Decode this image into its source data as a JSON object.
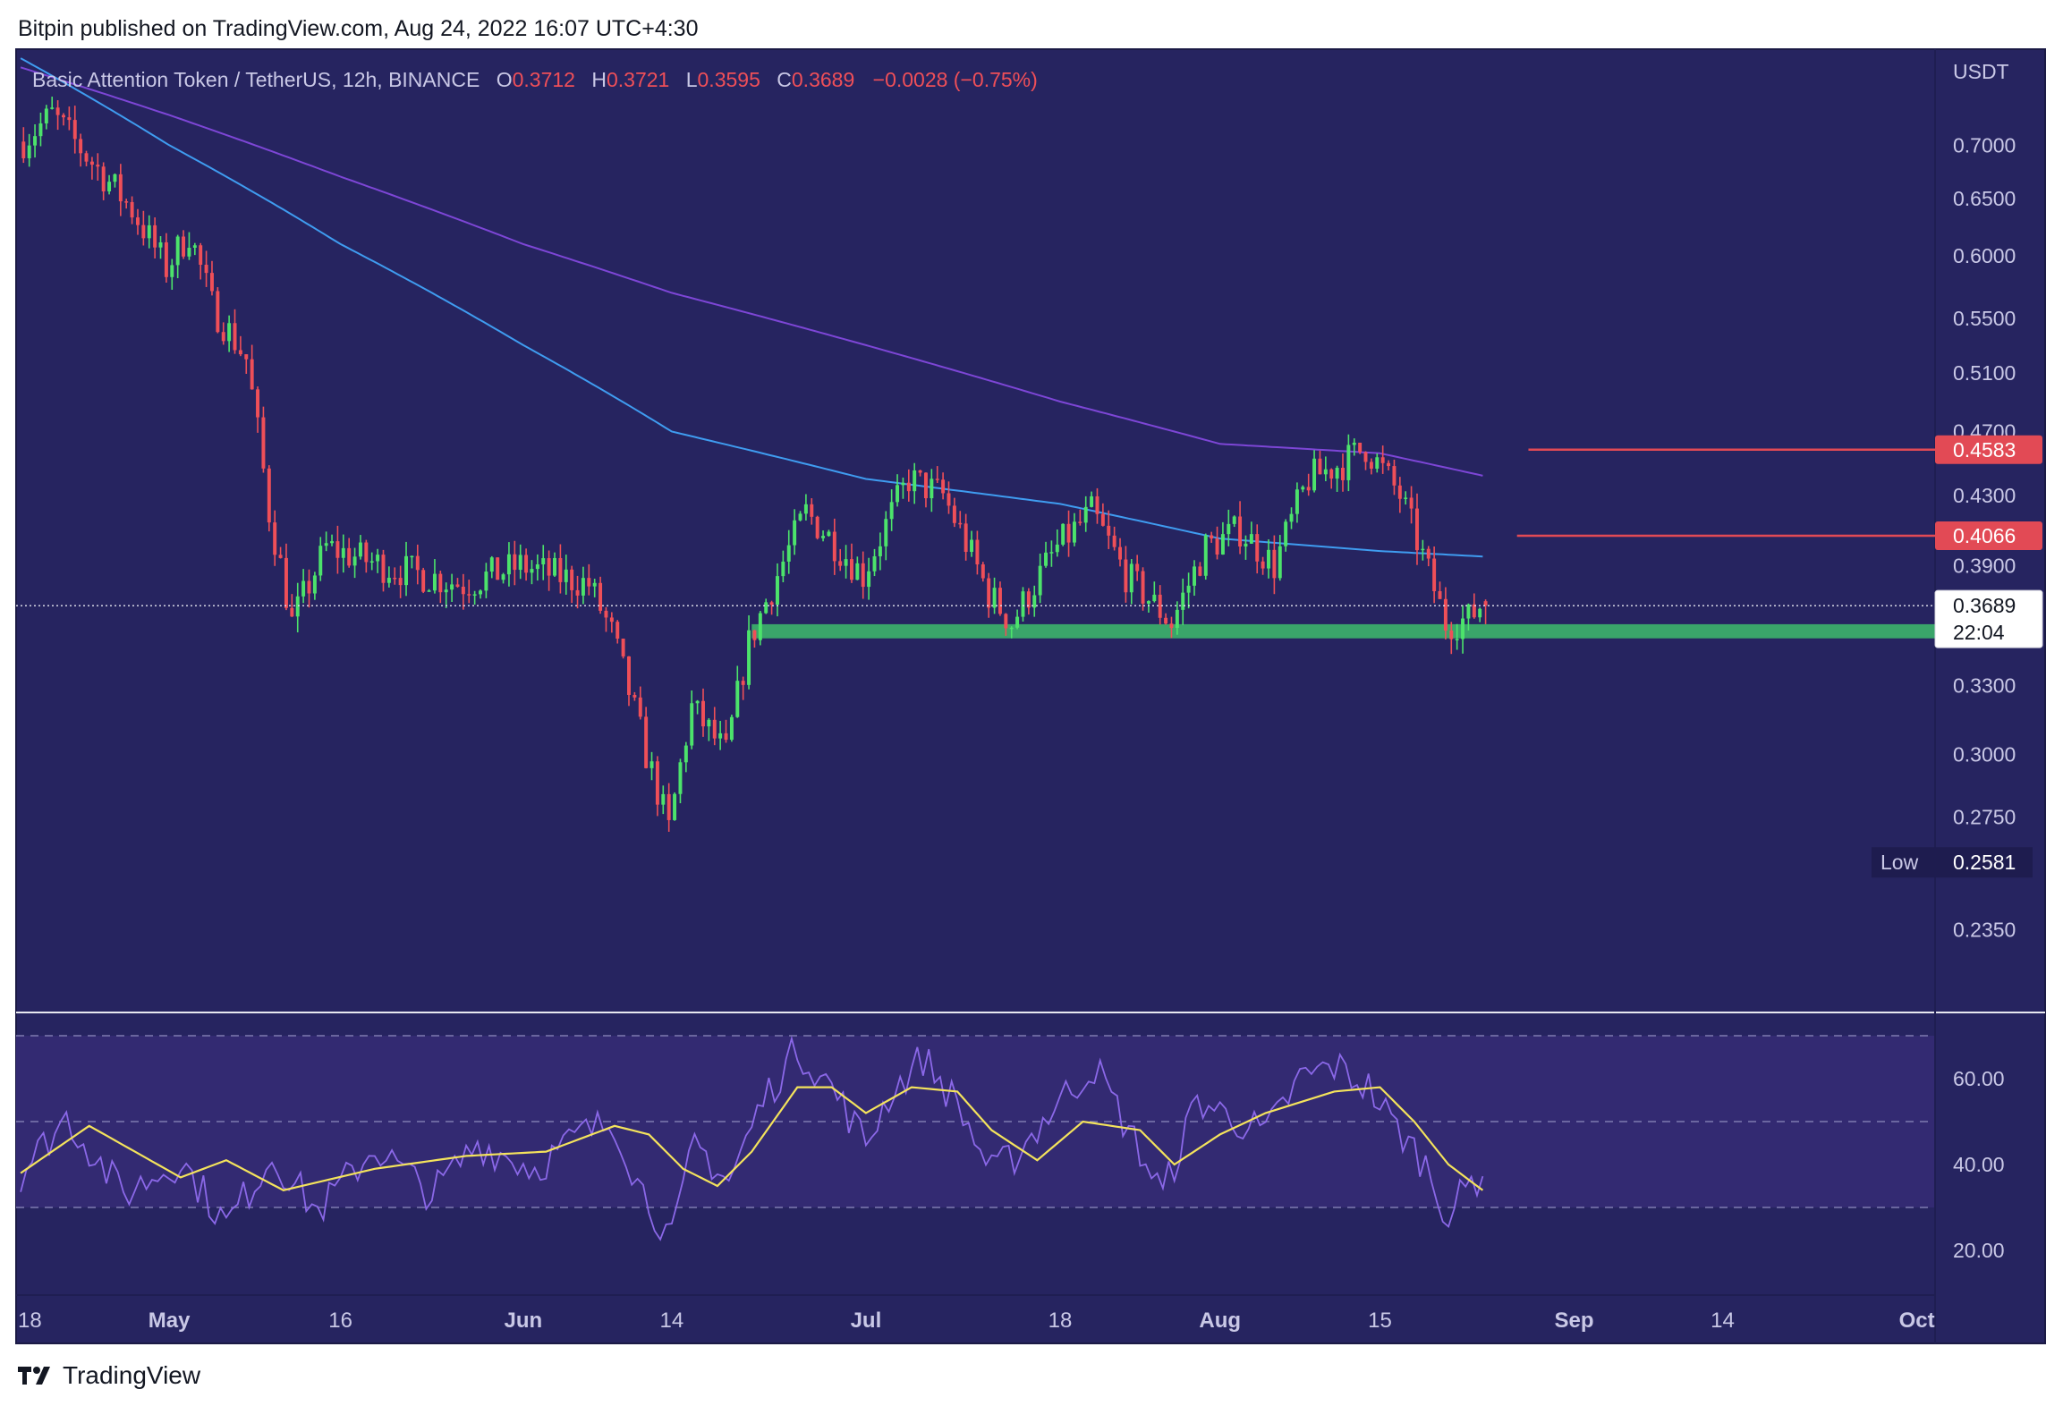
{
  "publisher_line": "Bitpin published on TradingView.com, Aug 24, 2022 16:07 UTC+4:30",
  "colors": {
    "background": "#262460",
    "rsi_band": "#332a72",
    "up_candle": "#4ce36b",
    "down_candle": "#ef4f58",
    "ema_blue": "#3f9cf0",
    "ema_purple": "#7d46d6",
    "rsi_line": "#8b68e8",
    "rsi_ma": "#f4e35c",
    "support_zone": "#3aa56a",
    "resistance_line": "#e24a55"
  },
  "chart_data": {
    "type": "candlestick",
    "symbol_title": "Basic Attention Token / TetherUS, 12h, BINANCE",
    "ohlc": {
      "open": "0.3712",
      "high": "0.3721",
      "low": "0.3595",
      "close": "0.3689",
      "change": "−0.0028 (−0.75%)"
    },
    "scale": "log",
    "ylim": [
      0.21,
      0.8
    ],
    "currency_label": "USDT",
    "y_ticks": [
      "0.7000",
      "0.6500",
      "0.6000",
      "0.5500",
      "0.5100",
      "0.4700",
      "0.4300",
      "0.3900",
      "0.3300",
      "0.3000",
      "0.2750",
      "0.2350"
    ],
    "x_labels": [
      {
        "label": "18",
        "bold": false,
        "date": "2022-04-18"
      },
      {
        "label": "May",
        "bold": true,
        "date": "2022-05-01"
      },
      {
        "label": "16",
        "bold": false,
        "date": "2022-05-16"
      },
      {
        "label": "Jun",
        "bold": true,
        "date": "2022-06-01"
      },
      {
        "label": "14",
        "bold": false,
        "date": "2022-06-14"
      },
      {
        "label": "Jul",
        "bold": true,
        "date": "2022-07-01"
      },
      {
        "label": "18",
        "bold": false,
        "date": "2022-07-18"
      },
      {
        "label": "Aug",
        "bold": true,
        "date": "2022-08-01"
      },
      {
        "label": "15",
        "bold": false,
        "date": "2022-08-15"
      },
      {
        "label": "Sep",
        "bold": true,
        "date": "2022-09-01"
      },
      {
        "label": "14",
        "bold": false,
        "date": "2022-09-14"
      },
      {
        "label": "Oct",
        "bold": true,
        "date": "2022-10-01"
      }
    ],
    "x_range": [
      "2022-04-18",
      "2022-10-01"
    ],
    "candles_start": "2022-04-18",
    "candle_interval_days": 0.5,
    "price_keypoints": [
      [
        "2022-04-18",
        0.7
      ],
      [
        "2022-04-21",
        0.73
      ],
      [
        "2022-04-24",
        0.69
      ],
      [
        "2022-04-28",
        0.64
      ],
      [
        "2022-05-01",
        0.59
      ],
      [
        "2022-05-03",
        0.62
      ],
      [
        "2022-05-05",
        0.56
      ],
      [
        "2022-05-08",
        0.52
      ],
      [
        "2022-05-10",
        0.42
      ],
      [
        "2022-05-12",
        0.36
      ],
      [
        "2022-05-15",
        0.4
      ],
      [
        "2022-05-20",
        0.39
      ],
      [
        "2022-05-27",
        0.38
      ],
      [
        "2022-06-01",
        0.39
      ],
      [
        "2022-06-07",
        0.38
      ],
      [
        "2022-06-09",
        0.355
      ],
      [
        "2022-06-12",
        0.3
      ],
      [
        "2022-06-14",
        0.27
      ],
      [
        "2022-06-16",
        0.32
      ],
      [
        "2022-06-19",
        0.3
      ],
      [
        "2022-06-21",
        0.35
      ],
      [
        "2022-06-26",
        0.42
      ],
      [
        "2022-07-01",
        0.385
      ],
      [
        "2022-07-05",
        0.44
      ],
      [
        "2022-07-08",
        0.43
      ],
      [
        "2022-07-12",
        0.375
      ],
      [
        "2022-07-14",
        0.36
      ],
      [
        "2022-07-18",
        0.4
      ],
      [
        "2022-07-21",
        0.42
      ],
      [
        "2022-07-24",
        0.385
      ],
      [
        "2022-07-28",
        0.36
      ],
      [
        "2022-07-31",
        0.4
      ],
      [
        "2022-08-03",
        0.41
      ],
      [
        "2022-08-06",
        0.39
      ],
      [
        "2022-08-09",
        0.44
      ],
      [
        "2022-08-12",
        0.45
      ],
      [
        "2022-08-14",
        0.46
      ],
      [
        "2022-08-17",
        0.43
      ],
      [
        "2022-08-19",
        0.395
      ],
      [
        "2022-08-21",
        0.36
      ],
      [
        "2022-08-23",
        0.362
      ],
      [
        "2022-08-24",
        0.3689
      ]
    ],
    "ema_blue_keypoints": [
      [
        "2022-04-18",
        0.79
      ],
      [
        "2022-05-01",
        0.7
      ],
      [
        "2022-05-16",
        0.61
      ],
      [
        "2022-06-01",
        0.53
      ],
      [
        "2022-06-14",
        0.47
      ],
      [
        "2022-07-01",
        0.44
      ],
      [
        "2022-07-18",
        0.425
      ],
      [
        "2022-08-01",
        0.405
      ],
      [
        "2022-08-15",
        0.398
      ],
      [
        "2022-08-24",
        0.395
      ]
    ],
    "ema_purple_keypoints": [
      [
        "2022-04-18",
        0.78
      ],
      [
        "2022-05-01",
        0.73
      ],
      [
        "2022-05-16",
        0.67
      ],
      [
        "2022-06-01",
        0.61
      ],
      [
        "2022-06-14",
        0.57
      ],
      [
        "2022-07-01",
        0.53
      ],
      [
        "2022-07-18",
        0.49
      ],
      [
        "2022-08-01",
        0.462
      ],
      [
        "2022-08-15",
        0.456
      ],
      [
        "2022-08-24",
        0.442
      ]
    ],
    "horizontal_levels": [
      {
        "value": 0.4583,
        "label": "0.4583",
        "from": "2022-08-28",
        "kind": "resistance"
      },
      {
        "value": 0.4066,
        "label": "0.4066",
        "from": "2022-08-27",
        "kind": "resistance"
      }
    ],
    "support_zone": {
      "low": 0.3525,
      "high": 0.3595,
      "from": "2022-06-21"
    },
    "last_price": {
      "value": 0.3689,
      "label": "0.3689",
      "countdown": "22:04"
    },
    "low_marker": {
      "label": "Low",
      "value": "0.2581",
      "price": 0.2581
    },
    "rsi": {
      "ylim": [
        10,
        75
      ],
      "y_ticks": [
        "60.00",
        "40.00",
        "20.00"
      ],
      "dashed_levels": [
        70,
        50,
        30
      ],
      "band": [
        30,
        70
      ],
      "rsi_keypoints": [
        [
          "2022-04-18",
          38
        ],
        [
          "2022-04-22",
          51
        ],
        [
          "2022-04-27",
          33
        ],
        [
          "2022-05-02",
          41
        ],
        [
          "2022-05-06",
          26
        ],
        [
          "2022-05-10",
          42
        ],
        [
          "2022-05-14",
          29
        ],
        [
          "2022-05-19",
          44
        ],
        [
          "2022-05-24",
          33
        ],
        [
          "2022-05-28",
          45
        ],
        [
          "2022-06-02",
          39
        ],
        [
          "2022-06-06",
          47
        ],
        [
          "2022-06-09",
          50
        ],
        [
          "2022-06-11",
          36
        ],
        [
          "2022-06-14",
          22
        ],
        [
          "2022-06-16",
          45
        ],
        [
          "2022-06-19",
          36
        ],
        [
          "2022-06-22",
          55
        ],
        [
          "2022-06-25",
          67
        ],
        [
          "2022-06-28",
          58
        ],
        [
          "2022-07-01",
          45
        ],
        [
          "2022-07-03",
          56
        ],
        [
          "2022-07-06",
          65
        ],
        [
          "2022-07-09",
          54
        ],
        [
          "2022-07-12",
          38
        ],
        [
          "2022-07-14",
          42
        ],
        [
          "2022-07-18",
          55
        ],
        [
          "2022-07-21",
          63
        ],
        [
          "2022-07-24",
          48
        ],
        [
          "2022-07-27",
          33
        ],
        [
          "2022-07-30",
          55
        ],
        [
          "2022-08-02",
          51
        ],
        [
          "2022-08-05",
          47
        ],
        [
          "2022-08-08",
          60
        ],
        [
          "2022-08-11",
          63
        ],
        [
          "2022-08-14",
          58
        ],
        [
          "2022-08-16",
          50
        ],
        [
          "2022-08-19",
          40
        ],
        [
          "2022-08-21",
          28
        ],
        [
          "2022-08-23",
          36
        ],
        [
          "2022-08-24",
          38
        ]
      ],
      "ma_keypoints": [
        [
          "2022-04-18",
          38
        ],
        [
          "2022-04-24",
          49
        ],
        [
          "2022-05-02",
          37
        ],
        [
          "2022-05-06",
          41
        ],
        [
          "2022-05-11",
          34
        ],
        [
          "2022-05-19",
          39
        ],
        [
          "2022-05-27",
          42
        ],
        [
          "2022-06-03",
          43
        ],
        [
          "2022-06-09",
          49
        ],
        [
          "2022-06-12",
          47
        ],
        [
          "2022-06-15",
          39
        ],
        [
          "2022-06-18",
          35
        ],
        [
          "2022-06-21",
          43
        ],
        [
          "2022-06-25",
          58
        ],
        [
          "2022-06-28",
          58
        ],
        [
          "2022-07-01",
          52
        ],
        [
          "2022-07-05",
          58
        ],
        [
          "2022-07-09",
          57
        ],
        [
          "2022-07-12",
          48
        ],
        [
          "2022-07-16",
          41
        ],
        [
          "2022-07-20",
          50
        ],
        [
          "2022-07-25",
          48
        ],
        [
          "2022-07-28",
          40
        ],
        [
          "2022-08-01",
          47
        ],
        [
          "2022-08-05",
          52
        ],
        [
          "2022-08-11",
          57
        ],
        [
          "2022-08-15",
          58
        ],
        [
          "2022-08-18",
          50
        ],
        [
          "2022-08-21",
          40
        ],
        [
          "2022-08-24",
          34
        ]
      ]
    }
  },
  "footer": {
    "brand": "TradingView"
  }
}
